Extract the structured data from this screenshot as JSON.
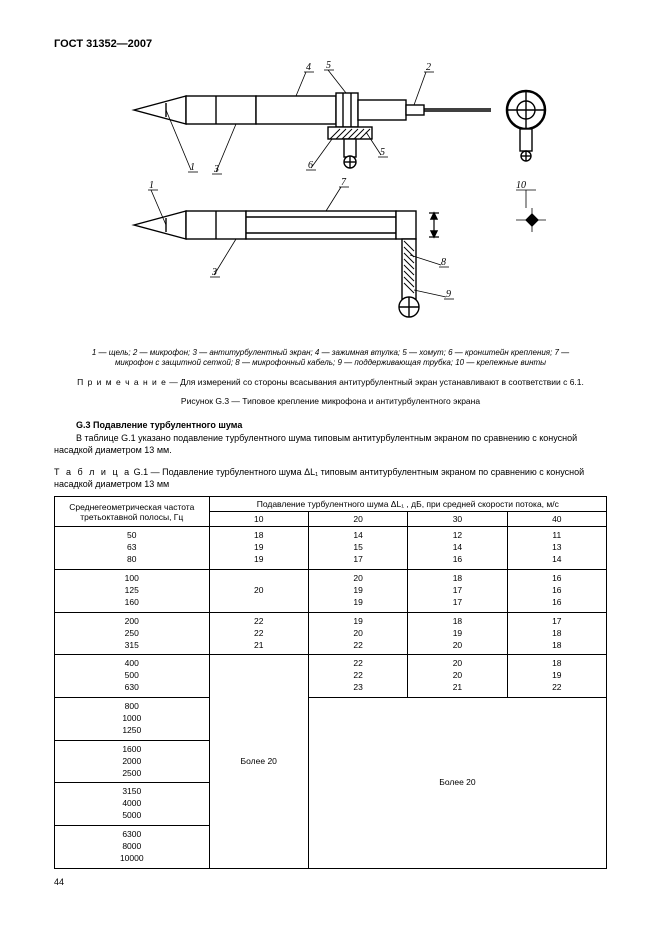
{
  "doc_header": "ГОСТ  31352—2007",
  "figure": {
    "labels": [
      "1",
      "2",
      "3",
      "4",
      "5",
      "6",
      "7",
      "8",
      "9",
      "10"
    ],
    "legend_parts": "1 — щель; 2 — микрофон; 3 — антитурбулентный экран; 4 — зажимная втулка; 5 — хомут; 6 — кронштейн крепления; 7 — микрофон с защитной сеткой; 8 — микрофонный кабель; 9 — поддерживающая трубка; 10 — крепежные винты",
    "note_label": "П р и м е ч а н и е",
    "note_text": " — Для измерений со стороны всасывания антитурбулентный экран устанавливают в соответствии с 6.1.",
    "caption": "Рисунок G.3 — Типовое крепление микрофона и антитурбулентного экрана"
  },
  "subsection": {
    "title": "G.3 Подавление турбулентного шума",
    "text": "В таблице G.1 указано подавление турбулентного шума типовым антитурбулентным экраном по сравнению с конусной насадкой диаметром 13 мм."
  },
  "table": {
    "caption_label": "Т а б л и ц а",
    "caption_rest": "  G.1 — Подавление турбулентного шума ΔL₁ типовым антитурбулентным экраном по сравнению с конусной насадкой диаметром 13 мм",
    "col1_header": "Среднегеометрическая частота третьоктавной полосы, Гц",
    "col2_header": "Подавление турбулентного шума ΔL₁ , дБ, при средней скорости потока, м/с",
    "speed_headers": [
      "10",
      "20",
      "30",
      "40"
    ],
    "rows_3col": [
      {
        "freqs": "50\n63\n80",
        "v10": "18\n19\n19",
        "v20": "14\n15\n17",
        "v30": "12\n14\n16",
        "v40": "11\n13\n14"
      },
      {
        "freqs": "100\n125\n160",
        "v10": "20",
        "v20": "20\n19\n19",
        "v30": "18\n17\n17",
        "v40": "16\n16\n16"
      },
      {
        "freqs": "200\n250\n315",
        "v10": "22\n22\n21",
        "v20": "19\n20\n22",
        "v30": "18\n19\n20",
        "v40": "17\n18\n18"
      }
    ],
    "row_400": {
      "freqs": "400\n500\n630",
      "v20": "22\n22\n23",
      "v30": "20\n20\n21",
      "v40": "18\n19\n22"
    },
    "freq_groups_rest": [
      "800\n1000\n1250",
      "1600\n2000\n2500",
      "3150\n4000\n5000",
      "6300\n8000\n10000"
    ],
    "more20": "Более 20"
  },
  "page_number": "44",
  "colors": {
    "text": "#000000",
    "bg": "#ffffff",
    "stroke": "#000000"
  }
}
